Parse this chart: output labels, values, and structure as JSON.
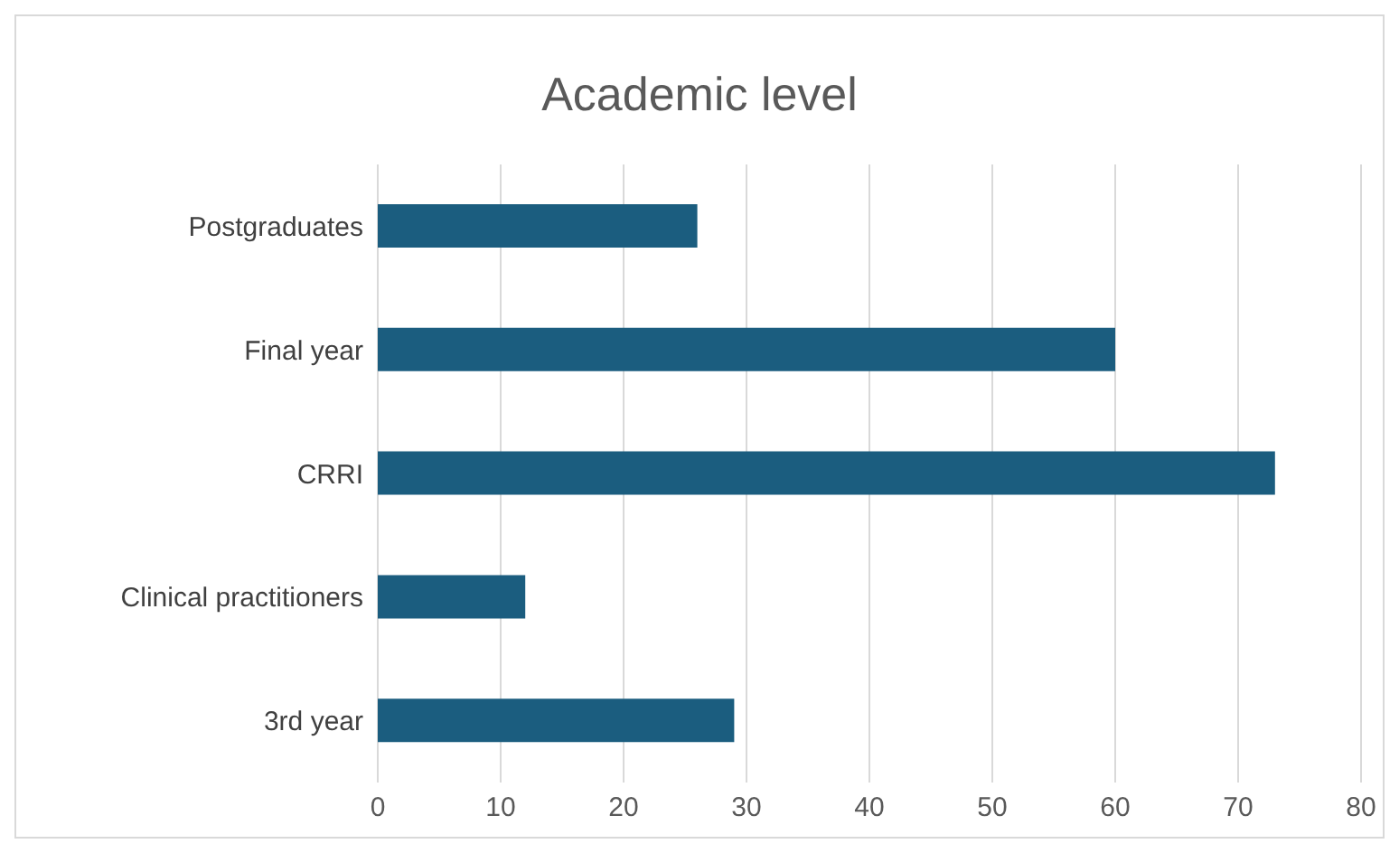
{
  "chart_data": {
    "type": "bar",
    "orientation": "horizontal",
    "title": "Academic level",
    "categories": [
      "Postgraduates",
      "Final year",
      "CRRI",
      "Clinical practitioners",
      "3rd year"
    ],
    "values": [
      26,
      60,
      73,
      12,
      29
    ],
    "color": "#1b5d7f",
    "xlim": [
      0,
      80
    ],
    "xticks": [
      0,
      10,
      20,
      30,
      40,
      50,
      60,
      70,
      80
    ],
    "grid": "x"
  }
}
